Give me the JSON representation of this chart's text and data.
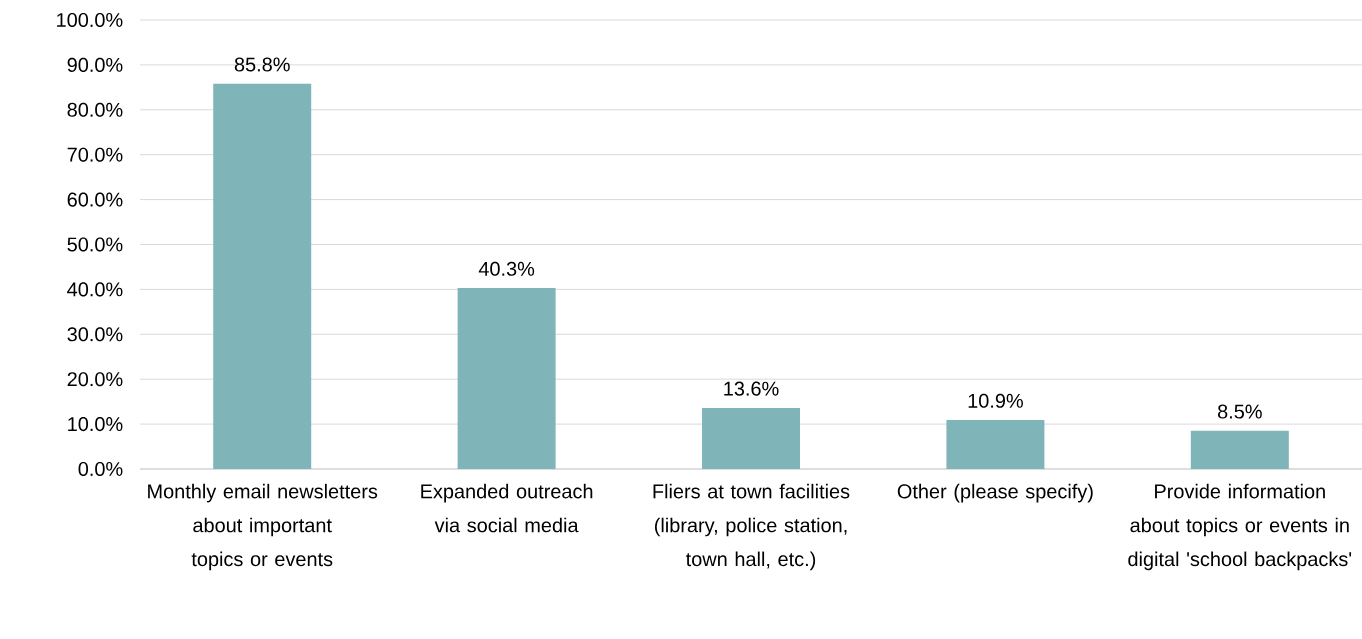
{
  "chart_data": {
    "type": "bar",
    "categories": [
      "Monthly email newsletters about important topics or events",
      "Expanded outreach via social media",
      "Fliers at town facilities (library, police station, town hall, etc.)",
      "Other (please specify)",
      "Provide information about topics or events in digital 'school backpacks'"
    ],
    "values": [
      85.8,
      40.3,
      13.6,
      10.9,
      8.5
    ],
    "value_labels": [
      "85.8%",
      "40.3%",
      "13.6%",
      "10.9%",
      "8.5%"
    ],
    "color": "#7fb5b9",
    "ylim": [
      0,
      100
    ],
    "yticks": [
      {
        "value": 0,
        "label": "0.0%"
      },
      {
        "value": 10,
        "label": "10.0%"
      },
      {
        "value": 20,
        "label": "20.0%"
      },
      {
        "value": 30,
        "label": "30.0%"
      },
      {
        "value": 40,
        "label": "40.0%"
      },
      {
        "value": 50,
        "label": "50.0%"
      },
      {
        "value": 60,
        "label": "60.0%"
      },
      {
        "value": 70,
        "label": "70.0%"
      },
      {
        "value": 80,
        "label": "80.0%"
      },
      {
        "value": 90,
        "label": "90.0%"
      },
      {
        "value": 100,
        "label": "100.0%"
      }
    ],
    "grid": "y"
  }
}
